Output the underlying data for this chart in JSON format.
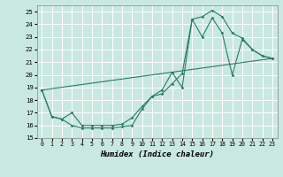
{
  "xlabel": "Humidex (Indice chaleur)",
  "xlim": [
    -0.5,
    23.5
  ],
  "ylim": [
    15,
    25.5
  ],
  "yticks": [
    15,
    16,
    17,
    18,
    19,
    20,
    21,
    22,
    23,
    24,
    25
  ],
  "xticks": [
    0,
    1,
    2,
    3,
    4,
    5,
    6,
    7,
    8,
    9,
    10,
    11,
    12,
    13,
    14,
    15,
    16,
    17,
    18,
    19,
    20,
    21,
    22,
    23
  ],
  "bg_color": "#c8e8e0",
  "grid_color": "#ffffff",
  "line_color": "#2a7a6a",
  "series1_x": [
    0,
    1,
    2,
    3,
    4,
    5,
    6,
    7,
    8,
    9,
    10,
    11,
    12,
    13,
    14,
    15,
    16,
    17,
    18,
    19,
    20,
    21,
    22,
    23
  ],
  "series1_y": [
    18.8,
    16.7,
    16.5,
    16.0,
    15.8,
    15.8,
    15.8,
    15.8,
    15.9,
    16.0,
    17.3,
    18.3,
    18.5,
    19.3,
    20.1,
    24.4,
    24.6,
    25.1,
    24.6,
    23.3,
    22.9,
    22.0,
    21.5,
    21.3
  ],
  "series2_x": [
    0,
    1,
    2,
    3,
    4,
    5,
    6,
    7,
    8,
    9,
    10,
    11,
    12,
    13,
    14,
    15,
    16,
    17,
    18,
    19,
    20,
    21,
    22,
    23
  ],
  "series2_y": [
    18.8,
    16.7,
    16.5,
    17.0,
    16.0,
    16.0,
    16.0,
    16.0,
    16.1,
    16.6,
    17.5,
    18.3,
    18.8,
    20.2,
    19.0,
    24.4,
    23.0,
    24.5,
    23.3,
    20.0,
    22.8,
    22.0,
    21.5,
    21.3
  ],
  "series3_x": [
    0,
    23
  ],
  "series3_y": [
    18.8,
    21.3
  ]
}
